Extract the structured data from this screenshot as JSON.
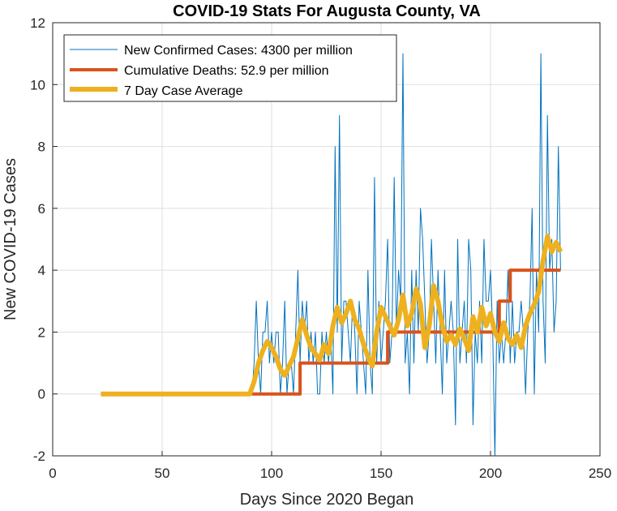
{
  "chart_data": {
    "type": "line",
    "title": "COVID-19 Stats For Augusta County, VA",
    "xlabel": "Days Since 2020 Began",
    "ylabel": "New COVID-19 Cases",
    "xlim": [
      0,
      250
    ],
    "ylim": [
      -2,
      12
    ],
    "xticks": [
      0,
      50,
      100,
      150,
      200,
      250
    ],
    "yticks": [
      -2,
      0,
      2,
      4,
      6,
      8,
      10,
      12
    ],
    "grid": true,
    "legend_position": "top-left",
    "colors": {
      "cases": "#0072BD",
      "deaths": "#D95319",
      "average": "#EDB120",
      "grid": "#dfdfdf",
      "axis": "#262626"
    },
    "series": [
      {
        "name": "New Confirmed Cases: 4300 per million",
        "x": [
          22,
          30,
          40,
          50,
          60,
          70,
          80,
          90,
          91,
          92,
          93,
          94,
          95,
          96,
          97,
          98,
          99,
          100,
          101,
          102,
          103,
          104,
          105,
          106,
          107,
          108,
          109,
          110,
          111,
          112,
          113,
          114,
          115,
          116,
          117,
          118,
          119,
          120,
          121,
          122,
          123,
          124,
          125,
          126,
          127,
          128,
          129,
          130,
          131,
          132,
          133,
          134,
          135,
          136,
          137,
          138,
          139,
          140,
          141,
          142,
          143,
          144,
          145,
          146,
          147,
          148,
          149,
          150,
          151,
          152,
          153,
          154,
          155,
          156,
          157,
          158,
          159,
          160,
          161,
          162,
          163,
          164,
          165,
          166,
          167,
          168,
          169,
          170,
          171,
          172,
          173,
          174,
          175,
          176,
          177,
          178,
          179,
          180,
          181,
          182,
          183,
          184,
          185,
          186,
          187,
          188,
          189,
          190,
          191,
          192,
          193,
          194,
          195,
          196,
          197,
          198,
          199,
          200,
          201,
          202,
          203,
          204,
          205,
          206,
          207,
          208,
          209,
          210,
          211,
          212,
          213,
          214,
          215,
          216,
          217,
          218,
          219,
          220,
          221,
          222,
          223,
          224,
          225,
          226,
          227,
          228,
          229,
          230,
          231,
          232
        ],
        "values": [
          0,
          0,
          0,
          0,
          0,
          0,
          0,
          0,
          0,
          1,
          3,
          1,
          0,
          2,
          2,
          3,
          1,
          2,
          1,
          2,
          2,
          0,
          1,
          3,
          0,
          1,
          1,
          0,
          2,
          4,
          1,
          3,
          2,
          3,
          1,
          2,
          1,
          2,
          0,
          0,
          2,
          1,
          2,
          1,
          2,
          0,
          8,
          2,
          9,
          1,
          3,
          3,
          2,
          1,
          3,
          2,
          0,
          3,
          2,
          1,
          0,
          4,
          1,
          0,
          7,
          1,
          3,
          1,
          2,
          3,
          5,
          1,
          2,
          7,
          2,
          4,
          3,
          11,
          1,
          2,
          0,
          4,
          1,
          4,
          2,
          6,
          5,
          3,
          1,
          2,
          5,
          3,
          1,
          4,
          2,
          0,
          4,
          1,
          2,
          3,
          2,
          -1,
          5,
          1,
          2,
          3,
          1,
          5,
          4,
          -1,
          2,
          1,
          3,
          1,
          5,
          3,
          3,
          4,
          2,
          -2,
          3,
          1,
          2,
          1,
          2,
          4,
          1,
          3,
          1,
          2,
          2,
          3,
          2,
          0,
          2,
          3,
          6,
          0,
          4,
          2,
          11,
          3,
          1,
          9,
          4,
          5,
          2,
          3,
          8,
          4
        ],
        "line_width": 1
      },
      {
        "name": "Cumulative Deaths: 52.9 per million",
        "x": [
          91,
          113,
          113,
          153,
          153,
          204,
          204,
          209,
          209,
          232
        ],
        "values": [
          0,
          0,
          1,
          1,
          2,
          2,
          3,
          3,
          4,
          4
        ],
        "line_width": 4
      },
      {
        "name": "7 Day Case Average",
        "x": [
          22,
          30,
          40,
          50,
          60,
          70,
          80,
          90,
          92,
          94,
          96,
          98,
          100,
          102,
          104,
          106,
          108,
          110,
          112,
          114,
          116,
          118,
          120,
          122,
          124,
          126,
          128,
          130,
          132,
          134,
          136,
          138,
          140,
          142,
          144,
          146,
          148,
          150,
          152,
          154,
          156,
          158,
          160,
          162,
          164,
          166,
          168,
          170,
          172,
          174,
          176,
          178,
          180,
          182,
          184,
          186,
          188,
          190,
          192,
          194,
          196,
          198,
          200,
          202,
          204,
          206,
          208,
          210,
          212,
          214,
          216,
          218,
          220,
          222,
          224,
          226,
          228,
          230,
          232
        ],
        "values": [
          0,
          0,
          0,
          0,
          0,
          0,
          0,
          0,
          0.4,
          1.0,
          1.4,
          1.7,
          1.5,
          1.2,
          0.8,
          0.6,
          0.9,
          1.2,
          1.8,
          2.4,
          1.9,
          1.5,
          1.3,
          1.1,
          1.6,
          1.3,
          2.2,
          2.8,
          2.3,
          2.6,
          3.0,
          2.4,
          2.1,
          1.6,
          1.2,
          0.9,
          2.0,
          2.8,
          2.5,
          2.2,
          1.9,
          2.4,
          3.2,
          2.2,
          2.6,
          3.4,
          2.9,
          1.5,
          2.2,
          3.5,
          3.0,
          2.2,
          1.7,
          1.9,
          1.6,
          2.1,
          1.8,
          1.4,
          2.5,
          2.0,
          2.8,
          2.2,
          2.6,
          2.0,
          1.7,
          2.3,
          1.8,
          1.6,
          1.9,
          1.5,
          2.2,
          2.6,
          2.9,
          3.3,
          4.3,
          5.1,
          4.6,
          4.9,
          4.6
        ],
        "line_width": 6
      }
    ]
  }
}
